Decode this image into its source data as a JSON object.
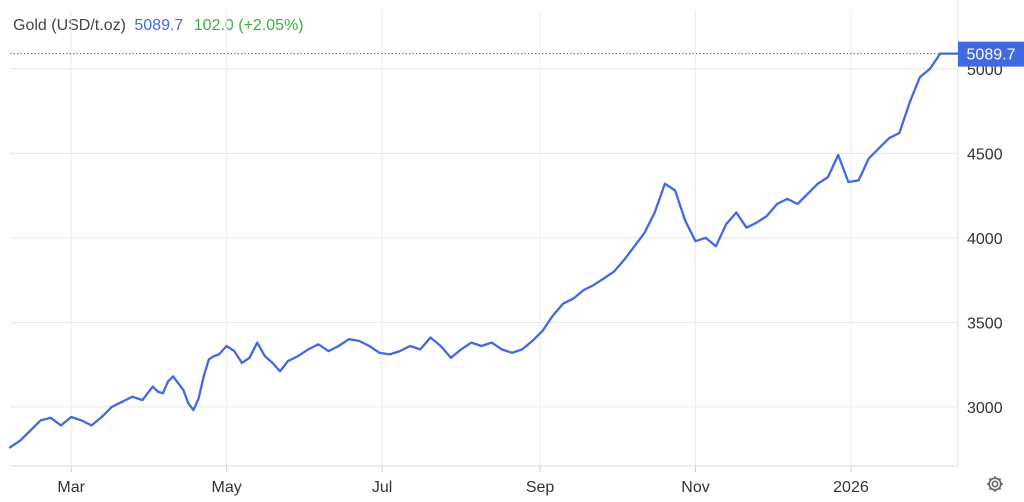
{
  "header": {
    "name": "Gold (USD/t.oz)",
    "price": "5089.7",
    "change": "102.0 (+2.05%)"
  },
  "colors": {
    "line": "#4169e1",
    "price_label_bg": "#4169e1",
    "change_positive": "#3cb043"
  },
  "icons": {
    "settings": "gear-icon"
  },
  "chart_data": {
    "type": "line",
    "title": "",
    "xlabel": "",
    "ylabel": "",
    "ylim": [
      2650,
      5200
    ],
    "yticks": [
      3000,
      3500,
      4000,
      4500,
      5000
    ],
    "xticks": [
      "Mar",
      "May",
      "Jul",
      "Sep",
      "Nov",
      "2026"
    ],
    "xtick_dates": [
      "2025-03-01",
      "2025-05-01",
      "2025-07-01",
      "2025-09-01",
      "2025-11-01",
      "2026-01-01"
    ],
    "xlim": [
      "2025-02-05",
      "2026-02-12"
    ],
    "last_value_label": "5089.7",
    "grid": true,
    "legend": "none",
    "series": [
      {
        "x": [
          "2025-02-05",
          "2025-02-09",
          "2025-02-13",
          "2025-02-17",
          "2025-02-21",
          "2025-02-25",
          "2025-03-01",
          "2025-03-05",
          "2025-03-09",
          "2025-03-13",
          "2025-03-17",
          "2025-03-21",
          "2025-03-25",
          "2025-03-29",
          "2025-04-02",
          "2025-04-04",
          "2025-04-06",
          "2025-04-08",
          "2025-04-10",
          "2025-04-12",
          "2025-04-14",
          "2025-04-16",
          "2025-04-18",
          "2025-04-20",
          "2025-04-22",
          "2025-04-24",
          "2025-04-26",
          "2025-04-28",
          "2025-05-01",
          "2025-05-04",
          "2025-05-07",
          "2025-05-10",
          "2025-05-13",
          "2025-05-16",
          "2025-05-19",
          "2025-05-22",
          "2025-05-25",
          "2025-05-29",
          "2025-06-02",
          "2025-06-06",
          "2025-06-10",
          "2025-06-14",
          "2025-06-18",
          "2025-06-22",
          "2025-06-26",
          "2025-06-30",
          "2025-07-04",
          "2025-07-08",
          "2025-07-12",
          "2025-07-16",
          "2025-07-20",
          "2025-07-24",
          "2025-07-28",
          "2025-08-01",
          "2025-08-05",
          "2025-08-09",
          "2025-08-13",
          "2025-08-17",
          "2025-08-21",
          "2025-08-25",
          "2025-08-29",
          "2025-09-02",
          "2025-09-06",
          "2025-09-10",
          "2025-09-14",
          "2025-09-18",
          "2025-09-22",
          "2025-09-26",
          "2025-09-30",
          "2025-10-04",
          "2025-10-08",
          "2025-10-12",
          "2025-10-16",
          "2025-10-20",
          "2025-10-24",
          "2025-10-28",
          "2025-11-01",
          "2025-11-05",
          "2025-11-09",
          "2025-11-13",
          "2025-11-17",
          "2025-11-21",
          "2025-11-25",
          "2025-11-29",
          "2025-12-03",
          "2025-12-07",
          "2025-12-11",
          "2025-12-15",
          "2025-12-19",
          "2025-12-23",
          "2025-12-27",
          "2025-12-31",
          "2026-01-04",
          "2026-01-08",
          "2026-01-12",
          "2026-01-16",
          "2026-01-20",
          "2026-01-24",
          "2026-01-28",
          "2026-02-01",
          "2026-02-05",
          "2026-02-09",
          "2026-02-12"
        ],
        "y": [
          2760,
          2800,
          2860,
          2920,
          2935,
          2890,
          2940,
          2920,
          2890,
          2940,
          3000,
          3030,
          3060,
          3040,
          3120,
          3090,
          3080,
          3150,
          3180,
          3140,
          3100,
          3020,
          2980,
          3050,
          3180,
          3280,
          3300,
          3310,
          3360,
          3330,
          3260,
          3290,
          3380,
          3300,
          3260,
          3210,
          3270,
          3300,
          3340,
          3370,
          3330,
          3360,
          3400,
          3390,
          3360,
          3320,
          3310,
          3330,
          3360,
          3340,
          3410,
          3360,
          3290,
          3340,
          3380,
          3360,
          3380,
          3340,
          3320,
          3340,
          3390,
          3450,
          3540,
          3610,
          3640,
          3690,
          3720,
          3760,
          3800,
          3870,
          3950,
          4030,
          4150,
          4320,
          4280,
          4100,
          3980,
          4000,
          3950,
          4080,
          4150,
          4060,
          4090,
          4130,
          4200,
          4230,
          4200,
          4260,
          4320,
          4360,
          4490,
          4330,
          4340,
          4470,
          4530,
          4590,
          4620,
          4800,
          4950,
          5000,
          5089.7,
          5089.7,
          5089.7
        ]
      }
    ]
  }
}
